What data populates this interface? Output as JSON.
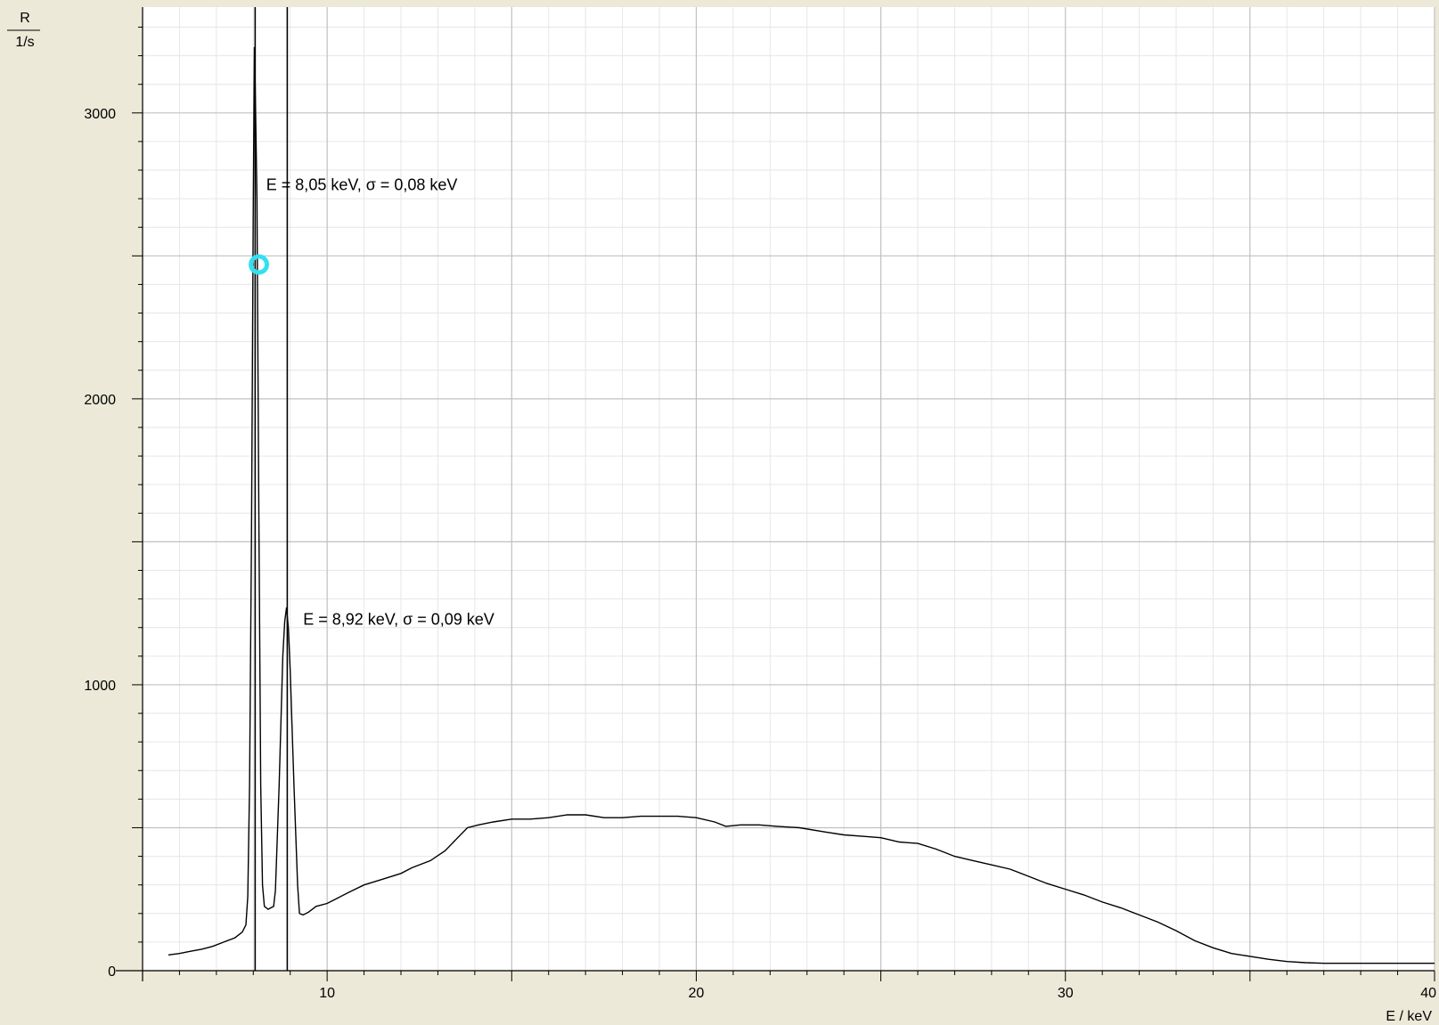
{
  "chart_data": {
    "type": "line",
    "title": "",
    "ylabel": "R",
    "yunit": "1/s",
    "xlabel": "E / keV",
    "xlim": [
      5,
      40
    ],
    "ylim": [
      0,
      3370
    ],
    "x_major_ticks": [
      10,
      20,
      30,
      40
    ],
    "y_major_ticks": [
      0,
      1000,
      2000,
      3000
    ],
    "grid": true,
    "legend": "none",
    "line_color": "#000000",
    "background_color": "#ffffff",
    "frame_color": "#ece9d8",
    "marker_color": "#33e0f0",
    "marker_point": [
      8.15,
      2470
    ],
    "peak_markers": [
      8.05,
      8.92
    ],
    "annotations": [
      {
        "E": "8,05",
        "sigma": "0,08",
        "text": "E =  8,05 keV,   σ = 0,08 keV",
        "x": 8.35,
        "y": 2730
      },
      {
        "E": "8,92",
        "sigma": "0,09",
        "text": "E =  8,92 keV,   σ = 0,09 keV",
        "x": 9.35,
        "y": 1210
      }
    ],
    "series": [
      {
        "values": [
          [
            5.7,
            55
          ],
          [
            6.0,
            60
          ],
          [
            6.3,
            68
          ],
          [
            6.6,
            75
          ],
          [
            6.9,
            85
          ],
          [
            7.2,
            100
          ],
          [
            7.5,
            115
          ],
          [
            7.7,
            135
          ],
          [
            7.8,
            160
          ],
          [
            7.85,
            260
          ],
          [
            7.9,
            650
          ],
          [
            7.95,
            1500
          ],
          [
            8.0,
            2700
          ],
          [
            8.03,
            3230
          ],
          [
            8.05,
            3100
          ],
          [
            8.1,
            2700
          ],
          [
            8.15,
            1600
          ],
          [
            8.2,
            650
          ],
          [
            8.25,
            300
          ],
          [
            8.3,
            225
          ],
          [
            8.4,
            215
          ],
          [
            8.55,
            225
          ],
          [
            8.6,
            280
          ],
          [
            8.7,
            650
          ],
          [
            8.8,
            1100
          ],
          [
            8.85,
            1220
          ],
          [
            8.9,
            1270
          ],
          [
            8.95,
            1200
          ],
          [
            9.0,
            1050
          ],
          [
            9.1,
            650
          ],
          [
            9.2,
            300
          ],
          [
            9.25,
            200
          ],
          [
            9.35,
            195
          ],
          [
            9.5,
            205
          ],
          [
            9.7,
            225
          ],
          [
            10.0,
            235
          ],
          [
            10.3,
            255
          ],
          [
            10.6,
            275
          ],
          [
            11.0,
            300
          ],
          [
            11.5,
            320
          ],
          [
            12.0,
            340
          ],
          [
            12.3,
            360
          ],
          [
            12.8,
            385
          ],
          [
            13.2,
            420
          ],
          [
            13.5,
            460
          ],
          [
            13.8,
            500
          ],
          [
            14.1,
            510
          ],
          [
            14.5,
            520
          ],
          [
            15.0,
            530
          ],
          [
            15.5,
            530
          ],
          [
            16.0,
            535
          ],
          [
            16.5,
            545
          ],
          [
            17.0,
            545
          ],
          [
            17.5,
            535
          ],
          [
            18.0,
            535
          ],
          [
            18.5,
            540
          ],
          [
            19.0,
            540
          ],
          [
            19.5,
            540
          ],
          [
            20.0,
            535
          ],
          [
            20.5,
            520
          ],
          [
            20.8,
            505
          ],
          [
            21.2,
            510
          ],
          [
            21.7,
            510
          ],
          [
            22.2,
            505
          ],
          [
            22.8,
            500
          ],
          [
            23.5,
            485
          ],
          [
            24.0,
            475
          ],
          [
            24.5,
            470
          ],
          [
            25.0,
            465
          ],
          [
            25.5,
            450
          ],
          [
            26.0,
            445
          ],
          [
            26.5,
            425
          ],
          [
            27.0,
            400
          ],
          [
            27.5,
            385
          ],
          [
            28.0,
            370
          ],
          [
            28.5,
            355
          ],
          [
            29.0,
            330
          ],
          [
            29.5,
            305
          ],
          [
            30.0,
            285
          ],
          [
            30.5,
            265
          ],
          [
            31.0,
            240
          ],
          [
            31.5,
            220
          ],
          [
            32.0,
            195
          ],
          [
            32.5,
            170
          ],
          [
            33.0,
            140
          ],
          [
            33.5,
            105
          ],
          [
            34.0,
            80
          ],
          [
            34.5,
            60
          ],
          [
            35.0,
            50
          ],
          [
            35.5,
            40
          ],
          [
            36.0,
            32
          ],
          [
            36.5,
            28
          ],
          [
            37.0,
            26
          ],
          [
            38.0,
            26
          ],
          [
            39.0,
            26
          ],
          [
            40.0,
            26
          ]
        ]
      }
    ]
  }
}
